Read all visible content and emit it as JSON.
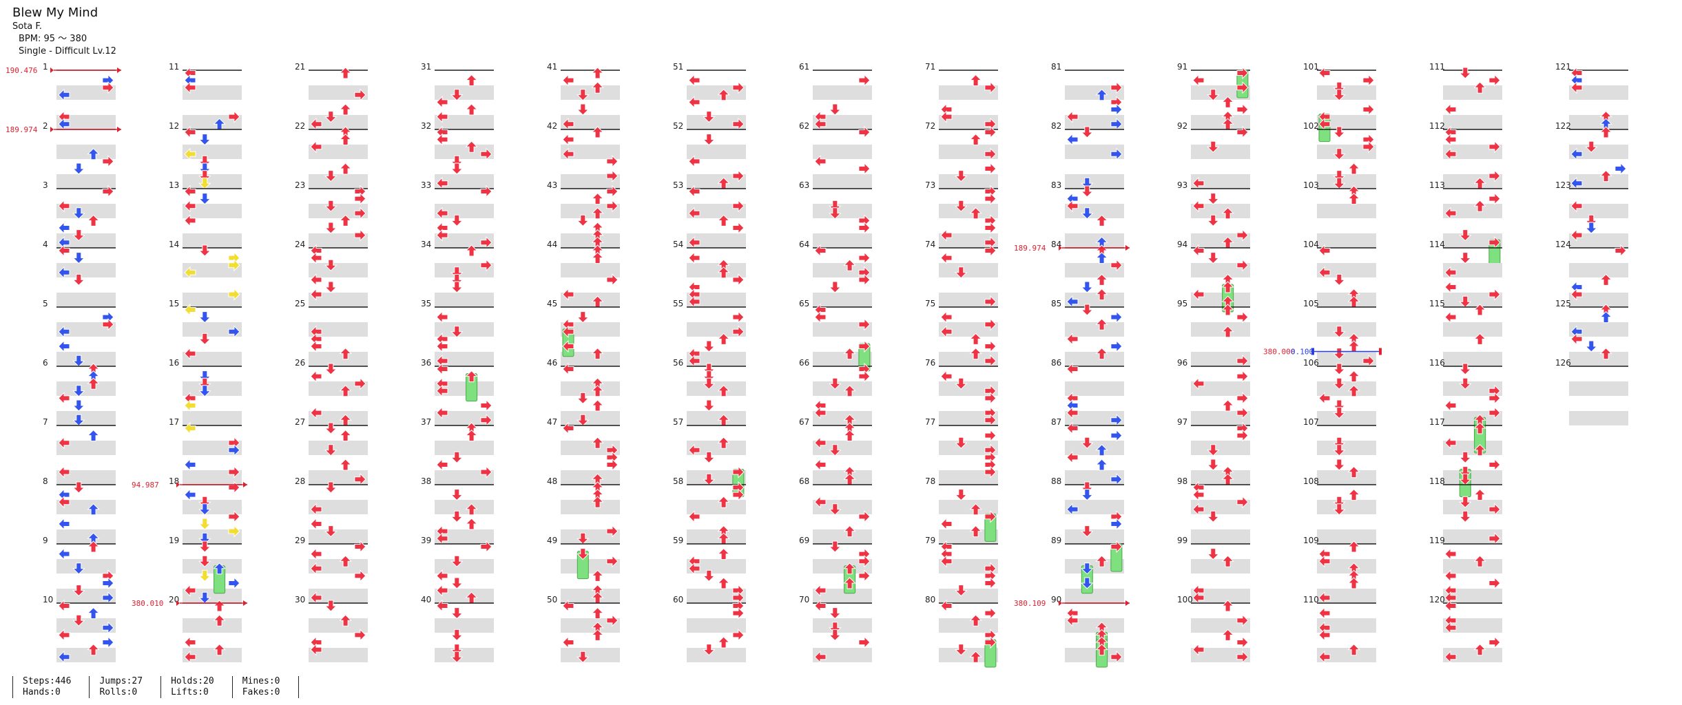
{
  "song": {
    "title": "Blew My Mind",
    "artist": "Sota F.",
    "bpm_line": "BPM: 95 ～ 380",
    "difficulty_line": "Single - Difficult Lv.12"
  },
  "colors": {
    "tap": "#ee3344",
    "eighth": "#3355ee",
    "sixteenth": "#f2dd33",
    "hold": "#7ee07e",
    "bpm_marker": "#e02030",
    "stop_marker": "#2a3fe0"
  },
  "measures": [
    "1",
    "2",
    "3",
    "4",
    "5",
    "6",
    "7",
    "8",
    "9",
    "10",
    "11",
    "12",
    "13",
    "14",
    "15",
    "16",
    "17",
    "18",
    "19",
    "20",
    "21",
    "22",
    "23",
    "24",
    "25",
    "26",
    "27",
    "28",
    "29",
    "30",
    "31",
    "32",
    "33",
    "34",
    "35",
    "36",
    "37",
    "38",
    "39",
    "40",
    "41",
    "42",
    "43",
    "44",
    "45",
    "46",
    "47",
    "48",
    "49",
    "50",
    "51",
    "52",
    "53",
    "54",
    "55",
    "56",
    "57",
    "58",
    "59",
    "60",
    "61",
    "62",
    "63",
    "64",
    "65",
    "66",
    "67",
    "68",
    "69",
    "70",
    "71",
    "72",
    "73",
    "74",
    "75",
    "76",
    "77",
    "78",
    "79",
    "80",
    "81",
    "82",
    "83",
    "84",
    "85",
    "86",
    "87",
    "88",
    "89",
    "90",
    "91",
    "92",
    "93",
    "94",
    "95",
    "96",
    "97",
    "98",
    "99",
    "100",
    "101",
    "102",
    "103",
    "104",
    "105",
    "106",
    "107",
    "108",
    "109",
    "110",
    "111",
    "112",
    "113",
    "114",
    "115",
    "116",
    "117",
    "118",
    "119",
    "120",
    "121",
    "122",
    "123",
    "124",
    "125",
    "126"
  ],
  "bpm_changes": [
    {
      "measure": 1,
      "label": "190.476"
    },
    {
      "measure": 2,
      "label": "189.974"
    },
    {
      "measure": 18,
      "label": "94.987"
    },
    {
      "measure": 20,
      "label": "380.010"
    },
    {
      "measure": 84,
      "label": "189.974"
    },
    {
      "measure": 90,
      "label": "380.109"
    }
  ],
  "stops": [
    {
      "measure": 105.75,
      "bpm_label": "380.000",
      "stop_label": "0.100"
    }
  ],
  "stats": [
    {
      "label_a": "Steps:446",
      "label_b": "Hands:0"
    },
    {
      "label_a": "Jumps:27",
      "label_b": "Rolls:0"
    },
    {
      "label_a": "Holds:20",
      "label_b": "Lifts:0"
    },
    {
      "label_a": "Mines:0",
      "label_b": "Fakes:0"
    }
  ]
}
